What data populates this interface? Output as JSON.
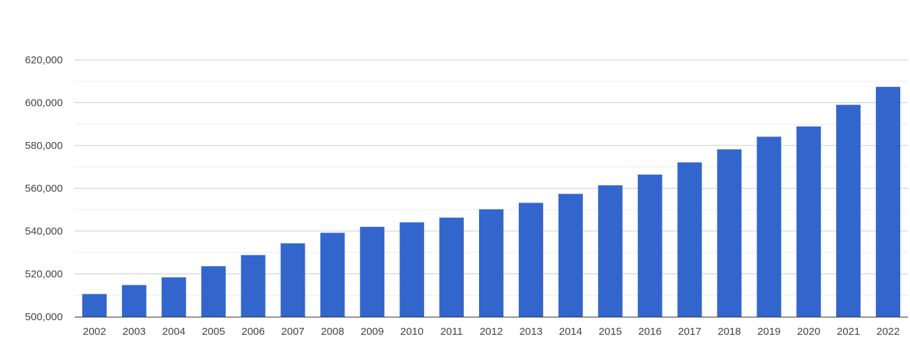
{
  "chart_data": {
    "type": "bar",
    "title": "",
    "xlabel": "",
    "ylabel": "",
    "categories": [
      "2002",
      "2003",
      "2004",
      "2005",
      "2006",
      "2007",
      "2008",
      "2009",
      "2010",
      "2011",
      "2012",
      "2013",
      "2014",
      "2015",
      "2016",
      "2017",
      "2018",
      "2019",
      "2020",
      "2021",
      "2022"
    ],
    "values": [
      510600,
      514800,
      518400,
      523600,
      528800,
      534300,
      539200,
      542000,
      544100,
      546300,
      550200,
      553200,
      557400,
      561400,
      566400,
      572100,
      578200,
      584100,
      588900,
      599000,
      607400
    ],
    "ylim": [
      500000,
      620000
    ],
    "yticks": [
      500000,
      520000,
      540000,
      560000,
      580000,
      600000,
      620000
    ],
    "ytick_labels": [
      "500,000",
      "520,000",
      "540,000",
      "560,000",
      "580,000",
      "600,000",
      "620,000"
    ],
    "grid": true,
    "legend": "none",
    "bar_color": "#3366cc"
  }
}
